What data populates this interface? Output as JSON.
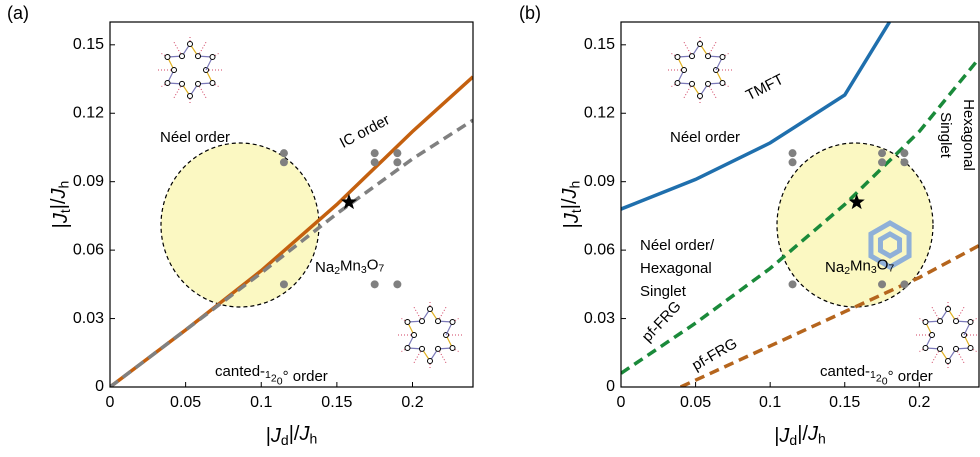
{
  "chart_data": [
    {
      "type": "line",
      "panel_label": "(a)",
      "x_label": "|Jd|/Jh",
      "y_label": "|Jt|/Jh",
      "xlim": [
        0,
        0.24
      ],
      "ylim": [
        0,
        0.16
      ],
      "xticks": [
        0,
        0.05,
        0.1,
        0.15,
        0.2
      ],
      "yticks": [
        0,
        0.03,
        0.06,
        0.09,
        0.12,
        0.15
      ],
      "series": [
        {
          "color": "#c4600f",
          "dashed": false,
          "x": [
            0,
            0.05,
            0.1,
            0.15,
            0.2,
            0.24
          ],
          "values": [
            0,
            0.025,
            0.051,
            0.08,
            0.112,
            0.136
          ]
        },
        {
          "color": "#808080",
          "dashed": true,
          "x": [
            0,
            0.05,
            0.1,
            0.15,
            0.2,
            0.24
          ],
          "values": [
            0,
            0.025,
            0.05,
            0.076,
            0.1,
            0.117
          ]
        }
      ],
      "points": {
        "color": "#808080",
        "x": [
          0.115,
          0.115,
          0.175,
          0.175,
          0.19,
          0.19,
          0.115,
          0.175,
          0.19
        ],
        "y": [
          0.1025,
          0.0985,
          0.1025,
          0.0985,
          0.1025,
          0.0985,
          0.045,
          0.045,
          0.045
        ]
      },
      "star": {
        "x": 0.158,
        "y": 0.081
      },
      "annotations": [
        [
          "Néel order"
        ],
        [
          "IC order"
        ],
        [
          "Na2Mn3O7"
        ],
        [
          "canted-120° order"
        ]
      ]
    },
    {
      "type": "line",
      "panel_label": "(b)",
      "x_label": "|Jd|/Jh",
      "y_label": "|Jt|/Jh",
      "xlim": [
        0,
        0.24
      ],
      "ylim": [
        0,
        0.16
      ],
      "xticks": [
        0,
        0.05,
        0.1,
        0.15,
        0.2
      ],
      "yticks": [
        0,
        0.03,
        0.06,
        0.09,
        0.12,
        0.15
      ],
      "series": [
        {
          "color": "#1f6fad",
          "dashed": false,
          "x": [
            0,
            0.05,
            0.1,
            0.15,
            0.18
          ],
          "values": [
            0.078,
            0.091,
            0.107,
            0.128,
            0.16
          ]
        },
        {
          "color": "#1a8a3a",
          "dashed": true,
          "x": [
            0,
            0.05,
            0.1,
            0.15,
            0.2,
            0.24
          ],
          "values": [
            0.006,
            0.028,
            0.052,
            0.08,
            0.112,
            0.144
          ]
        },
        {
          "color": "#b5651d",
          "dashed": true,
          "x": [
            0.04,
            0.1,
            0.15,
            0.2,
            0.24
          ],
          "values": [
            0,
            0.018,
            0.033,
            0.048,
            0.062
          ]
        }
      ],
      "points": {
        "color": "#808080",
        "x": [
          0.115,
          0.115,
          0.175,
          0.175,
          0.19,
          0.19,
          0.115,
          0.175,
          0.19
        ],
        "y": [
          0.1025,
          0.0985,
          0.1025,
          0.0985,
          0.1025,
          0.0985,
          0.045,
          0.045,
          0.045
        ]
      },
      "star": {
        "x": 0.158,
        "y": 0.081
      },
      "annotations": [
        [
          "TMFT"
        ],
        [
          "Hexagonal",
          "Singlet"
        ],
        [
          "Néel order"
        ],
        [
          "Néel order/",
          "Hexagonal",
          "Singlet"
        ],
        [
          "Na2Mn3O7"
        ],
        [
          "pf-FRG"
        ],
        [
          "pf-FRG"
        ],
        [
          "canted-120° order"
        ]
      ]
    }
  ]
}
